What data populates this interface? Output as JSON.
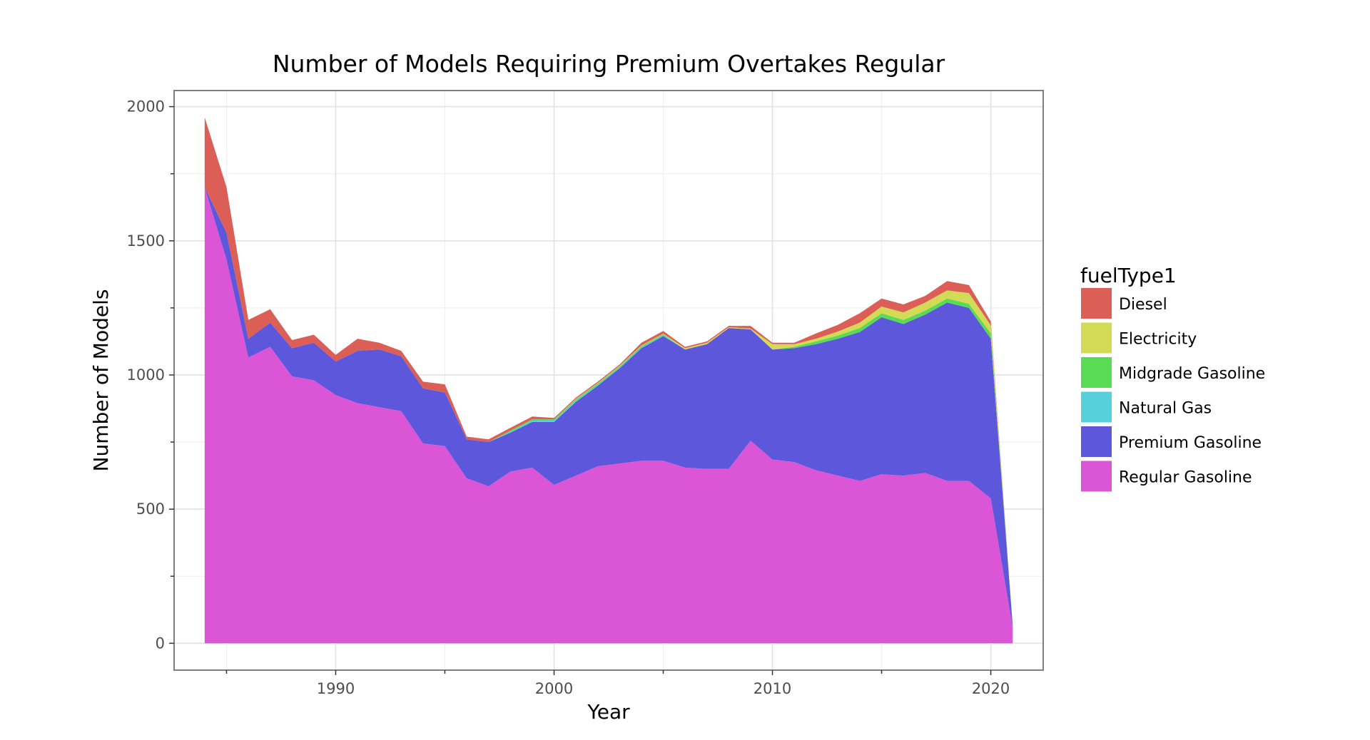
{
  "chart_data": {
    "type": "area",
    "stacked": true,
    "title": "Number of Models Requiring Premium Overtakes Regular",
    "xlabel": "Year",
    "ylabel": "Number of Models",
    "xlim": [
      1982.6,
      2022.4
    ],
    "ylim": [
      -100,
      2060
    ],
    "x_ticks": [
      1990,
      2000,
      2010,
      2020
    ],
    "x_tick_labels": [
      "1990",
      "2000",
      "2010",
      "2020"
    ],
    "x_minor_ticks": [
      1985,
      1995,
      2005,
      2015
    ],
    "y_ticks": [
      0,
      500,
      1000,
      1500,
      2000
    ],
    "y_tick_labels": [
      "0",
      "500",
      "1000",
      "1500",
      "2000"
    ],
    "y_minor_ticks": [
      250,
      750,
      1250,
      1750
    ],
    "grid": true,
    "legend": {
      "title": "fuelType1",
      "position": "right"
    },
    "x": [
      1984,
      1985,
      1986,
      1987,
      1988,
      1989,
      1990,
      1991,
      1992,
      1993,
      1994,
      1995,
      1996,
      1997,
      1998,
      1999,
      2000,
      2001,
      2002,
      2003,
      2004,
      2005,
      2006,
      2007,
      2008,
      2009,
      2010,
      2011,
      2012,
      2013,
      2014,
      2015,
      2016,
      2017,
      2018,
      2019,
      2020,
      2021
    ],
    "series": [
      {
        "name": "Regular Gasoline",
        "color": "#DB56D6",
        "values": [
          1700,
          1430,
          1065,
          1105,
          995,
          980,
          925,
          895,
          880,
          865,
          745,
          735,
          615,
          585,
          640,
          655,
          590,
          625,
          660,
          670,
          680,
          680,
          655,
          650,
          650,
          755,
          685,
          675,
          645,
          625,
          605,
          630,
          625,
          635,
          605,
          605,
          540,
          60
        ]
      },
      {
        "name": "Premium Gasoline",
        "color": "#5D57DB",
        "values": [
          0,
          100,
          70,
          90,
          105,
          140,
          125,
          195,
          215,
          205,
          205,
          200,
          145,
          165,
          145,
          170,
          235,
          275,
          300,
          355,
          420,
          465,
          440,
          465,
          525,
          415,
          410,
          425,
          470,
          510,
          555,
          585,
          565,
          590,
          665,
          645,
          595,
          10
        ]
      },
      {
        "name": "Natural Gas",
        "color": "#56D1DB",
        "values": [
          0,
          0,
          0,
          0,
          0,
          0,
          0,
          0,
          0,
          0,
          0,
          0,
          0,
          0,
          3,
          5,
          5,
          4,
          3,
          2,
          3,
          3,
          0,
          0,
          0,
          0,
          0,
          0,
          0,
          0,
          0,
          0,
          0,
          0,
          0,
          0,
          0,
          0
        ]
      },
      {
        "name": "Midgrade Gasoline",
        "color": "#59DB56",
        "values": [
          0,
          0,
          0,
          0,
          0,
          0,
          0,
          0,
          0,
          0,
          0,
          0,
          0,
          0,
          5,
          5,
          5,
          5,
          5,
          5,
          5,
          4,
          0,
          0,
          0,
          0,
          0,
          5,
          10,
          12,
          15,
          15,
          15,
          15,
          15,
          15,
          20,
          0
        ]
      },
      {
        "name": "Electricity",
        "color": "#D3DB56",
        "values": [
          0,
          0,
          0,
          0,
          0,
          0,
          0,
          0,
          0,
          0,
          0,
          0,
          0,
          0,
          0,
          0,
          0,
          2,
          2,
          2,
          2,
          2,
          5,
          5,
          3,
          3,
          20,
          10,
          10,
          15,
          20,
          25,
          28,
          30,
          30,
          40,
          30,
          0
        ]
      },
      {
        "name": "Diesel",
        "color": "#DB5F57",
        "values": [
          260,
          170,
          70,
          50,
          30,
          30,
          25,
          45,
          25,
          20,
          25,
          30,
          10,
          10,
          10,
          10,
          5,
          5,
          5,
          5,
          10,
          10,
          5,
          5,
          5,
          10,
          5,
          5,
          20,
          25,
          35,
          30,
          30,
          25,
          35,
          30,
          15,
          0
        ]
      }
    ]
  }
}
